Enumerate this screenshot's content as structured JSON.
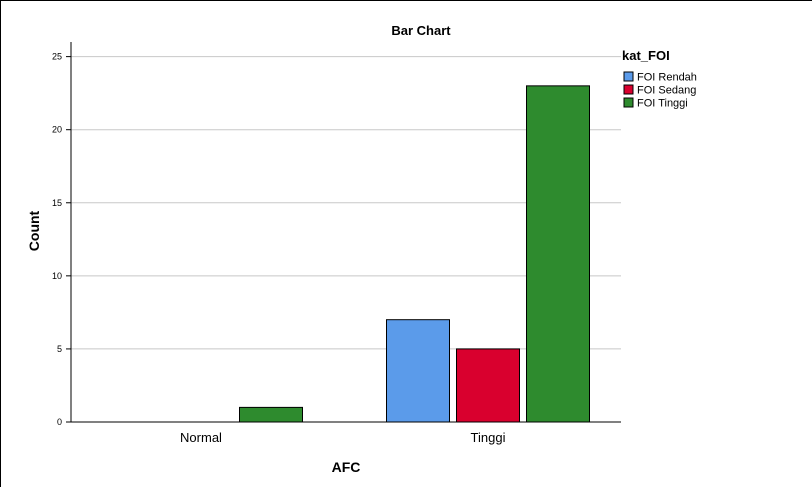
{
  "chart_data": {
    "type": "bar",
    "title": "Bar Chart",
    "xlabel": "AFC",
    "ylabel": "Count",
    "categories": [
      "Normal",
      "Tinggi"
    ],
    "series": [
      {
        "name": "FOI Rendah",
        "values": [
          0,
          7
        ],
        "color": "#5b9bea"
      },
      {
        "name": "FOI Sedang",
        "values": [
          0,
          5
        ],
        "color": "#d9002e"
      },
      {
        "name": "FOI Tinggi",
        "values": [
          1,
          23
        ],
        "color": "#2e8b2e"
      }
    ],
    "ylim": [
      0,
      26
    ],
    "yticks": [
      0,
      5,
      10,
      15,
      20,
      25
    ],
    "grid": true,
    "legend": {
      "title": "kat_FOI",
      "placement": "top-right"
    }
  }
}
